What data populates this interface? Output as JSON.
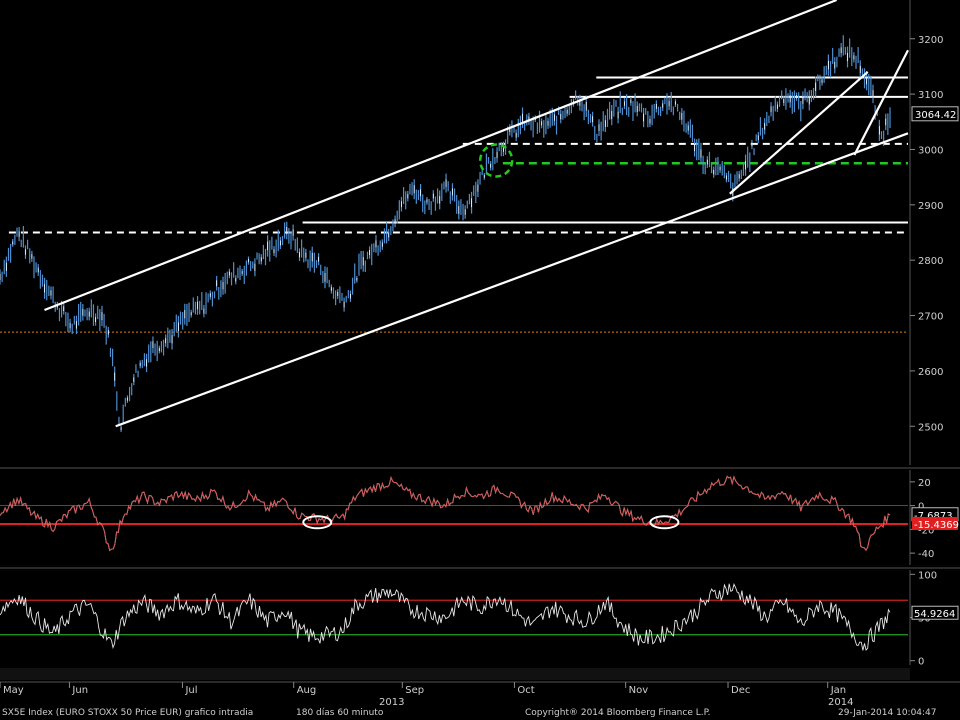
{
  "footer": {
    "security": "SX5E Index (EURO STOXX 50 Price EUR) grafico intradia",
    "range": "180 días 60 minuto",
    "copyright": "Copyright® 2014 Bloomberg Finance L.P.",
    "timestamp": "29-Jan-2014 10:04:47"
  },
  "colors": {
    "background": "#000000",
    "price": "#4f8fd0",
    "trendline": "#ffffff",
    "support_green": "#22c822",
    "indicator1": "#d23a3a",
    "indicator2": "#e6e6e6",
    "ref_orange": "#d9801e"
  },
  "chart_data": [
    {
      "type": "line",
      "panel": "price",
      "series": [
        {
          "name": "SX5E Index",
          "color": "#4f8fd0"
        }
      ],
      "x_months": [
        "May",
        "Jun",
        "Jul",
        "Aug",
        "Sep",
        "Oct",
        "Nov",
        "Dec",
        "Jan"
      ],
      "x_years": [
        "2013",
        "2014"
      ],
      "y_ticks": [
        2500,
        2600,
        2700,
        2800,
        2900,
        3000,
        3100,
        3200
      ],
      "ylim": [
        2430,
        3270
      ],
      "last_value_label": "3064.42",
      "price_path": [
        [
          0.0,
          2770
        ],
        [
          0.02,
          2850
        ],
        [
          0.04,
          2790
        ],
        [
          0.06,
          2730
        ],
        [
          0.08,
          2680
        ],
        [
          0.1,
          2710
        ],
        [
          0.115,
          2700
        ],
        [
          0.125,
          2640
        ],
        [
          0.135,
          2500
        ],
        [
          0.15,
          2590
        ],
        [
          0.17,
          2640
        ],
        [
          0.19,
          2660
        ],
        [
          0.21,
          2700
        ],
        [
          0.23,
          2720
        ],
        [
          0.25,
          2760
        ],
        [
          0.27,
          2780
        ],
        [
          0.29,
          2800
        ],
        [
          0.31,
          2830
        ],
        [
          0.325,
          2850
        ],
        [
          0.34,
          2810
        ],
        [
          0.36,
          2790
        ],
        [
          0.375,
          2740
        ],
        [
          0.39,
          2730
        ],
        [
          0.405,
          2790
        ],
        [
          0.42,
          2820
        ],
        [
          0.435,
          2850
        ],
        [
          0.45,
          2900
        ],
        [
          0.465,
          2930
        ],
        [
          0.48,
          2900
        ],
        [
          0.5,
          2930
        ],
        [
          0.52,
          2890
        ],
        [
          0.535,
          2930
        ],
        [
          0.55,
          2980
        ],
        [
          0.57,
          3020
        ],
        [
          0.59,
          3050
        ],
        [
          0.61,
          3040
        ],
        [
          0.63,
          3060
        ],
        [
          0.65,
          3100
        ],
        [
          0.67,
          3030
        ],
        [
          0.69,
          3070
        ],
        [
          0.71,
          3080
        ],
        [
          0.73,
          3060
        ],
        [
          0.75,
          3090
        ],
        [
          0.77,
          3050
        ],
        [
          0.79,
          2980
        ],
        [
          0.81,
          2960
        ],
        [
          0.825,
          2930
        ],
        [
          0.84,
          2980
        ],
        [
          0.86,
          3050
        ],
        [
          0.88,
          3100
        ],
        [
          0.9,
          3080
        ],
        [
          0.92,
          3120
        ],
        [
          0.935,
          3160
        ],
        [
          0.95,
          3180
        ],
        [
          0.965,
          3160
        ],
        [
          0.98,
          3100
        ],
        [
          0.99,
          3020
        ],
        [
          1.0,
          3064
        ]
      ],
      "trendlines": [
        {
          "kind": "channel-upper",
          "from": [
            0.05,
            2710
          ],
          "to": [
            0.94,
            3270
          ]
        },
        {
          "kind": "channel-lower",
          "from": [
            0.13,
            2500
          ],
          "to": [
            1.03,
            3035
          ]
        },
        {
          "kind": "inner-rising",
          "from": [
            0.82,
            2920
          ],
          "to": [
            0.975,
            3140
          ]
        },
        {
          "kind": "inner-steep",
          "from": [
            0.96,
            2990
          ],
          "to": [
            1.03,
            3210
          ]
        }
      ],
      "horizontal_levels": [
        {
          "value": 3130,
          "style": "solid",
          "from": 0.67,
          "to": 1.03
        },
        {
          "value": 3095,
          "style": "solid",
          "from": 0.64,
          "to": 1.03
        },
        {
          "value": 3010,
          "style": "dashed",
          "from": 0.52,
          "to": 1.03
        },
        {
          "value": 2975,
          "style": "dashed-green",
          "from": 0.565,
          "to": 1.03
        },
        {
          "value": 2868,
          "style": "solid",
          "from": 0.34,
          "to": 1.03
        },
        {
          "value": 2850,
          "style": "dashed",
          "from": 0.01,
          "to": 1.03
        },
        {
          "value": 2670,
          "style": "dotted-orange",
          "from": 0.0,
          "to": 1.03
        }
      ],
      "annotations": [
        {
          "kind": "green-circle",
          "at": [
            0.58,
            2980
          ]
        }
      ]
    },
    {
      "type": "line",
      "panel": "indicator-1",
      "series": [
        {
          "color": "#d23a3a"
        }
      ],
      "y_ticks": [
        20,
        0,
        -20,
        -40
      ],
      "ylim": [
        -50,
        30
      ],
      "reference_level": -15.4369,
      "last_value_labels": [
        "-7.6873",
        "-15.4369"
      ],
      "path": [
        [
          0.0,
          -5
        ],
        [
          0.02,
          5
        ],
        [
          0.04,
          -10
        ],
        [
          0.06,
          -18
        ],
        [
          0.08,
          -5
        ],
        [
          0.1,
          3
        ],
        [
          0.115,
          -20
        ],
        [
          0.125,
          -38
        ],
        [
          0.14,
          -5
        ],
        [
          0.16,
          8
        ],
        [
          0.18,
          2
        ],
        [
          0.2,
          10
        ],
        [
          0.22,
          5
        ],
        [
          0.24,
          12
        ],
        [
          0.26,
          -2
        ],
        [
          0.28,
          10
        ],
        [
          0.3,
          -3
        ],
        [
          0.32,
          5
        ],
        [
          0.335,
          -8
        ],
        [
          0.35,
          -10
        ],
        [
          0.37,
          -12
        ],
        [
          0.385,
          -10
        ],
        [
          0.4,
          8
        ],
        [
          0.42,
          15
        ],
        [
          0.44,
          20
        ],
        [
          0.46,
          10
        ],
        [
          0.48,
          5
        ],
        [
          0.5,
          0
        ],
        [
          0.52,
          12
        ],
        [
          0.54,
          8
        ],
        [
          0.56,
          15
        ],
        [
          0.58,
          5
        ],
        [
          0.6,
          -5
        ],
        [
          0.62,
          8
        ],
        [
          0.64,
          3
        ],
        [
          0.66,
          -2
        ],
        [
          0.68,
          10
        ],
        [
          0.7,
          -5
        ],
        [
          0.72,
          -12
        ],
        [
          0.74,
          -15
        ],
        [
          0.76,
          -8
        ],
        [
          0.78,
          5
        ],
        [
          0.8,
          18
        ],
        [
          0.82,
          22
        ],
        [
          0.84,
          15
        ],
        [
          0.86,
          5
        ],
        [
          0.88,
          12
        ],
        [
          0.9,
          -2
        ],
        [
          0.92,
          10
        ],
        [
          0.94,
          2
        ],
        [
          0.96,
          -15
        ],
        [
          0.97,
          -38
        ],
        [
          0.985,
          -20
        ],
        [
          1.0,
          -8
        ]
      ],
      "annotations": [
        {
          "kind": "white-ellipse",
          "at": [
            0.37,
            -14
          ]
        },
        {
          "kind": "white-ellipse",
          "at": [
            0.76,
            -14
          ]
        }
      ]
    },
    {
      "type": "line",
      "panel": "indicator-2",
      "series": [
        {
          "color": "#e6e6e6"
        }
      ],
      "y_ticks": [
        100,
        50,
        0
      ],
      "ylim": [
        -5,
        105
      ],
      "upper_level": 70,
      "lower_level": 30,
      "last_value_labels": [
        "54.9264"
      ],
      "path": [
        [
          0.0,
          60
        ],
        [
          0.02,
          75
        ],
        [
          0.04,
          50
        ],
        [
          0.06,
          30
        ],
        [
          0.08,
          55
        ],
        [
          0.1,
          65
        ],
        [
          0.115,
          35
        ],
        [
          0.125,
          18
        ],
        [
          0.14,
          50
        ],
        [
          0.16,
          68
        ],
        [
          0.18,
          55
        ],
        [
          0.2,
          70
        ],
        [
          0.22,
          55
        ],
        [
          0.24,
          72
        ],
        [
          0.26,
          45
        ],
        [
          0.28,
          70
        ],
        [
          0.3,
          45
        ],
        [
          0.32,
          60
        ],
        [
          0.335,
          35
        ],
        [
          0.35,
          28
        ],
        [
          0.37,
          30
        ],
        [
          0.385,
          35
        ],
        [
          0.4,
          65
        ],
        [
          0.42,
          75
        ],
        [
          0.44,
          80
        ],
        [
          0.46,
          60
        ],
        [
          0.48,
          55
        ],
        [
          0.5,
          50
        ],
        [
          0.52,
          70
        ],
        [
          0.54,
          62
        ],
        [
          0.56,
          75
        ],
        [
          0.58,
          55
        ],
        [
          0.6,
          40
        ],
        [
          0.62,
          62
        ],
        [
          0.64,
          52
        ],
        [
          0.66,
          45
        ],
        [
          0.68,
          68
        ],
        [
          0.7,
          40
        ],
        [
          0.72,
          25
        ],
        [
          0.74,
          28
        ],
        [
          0.76,
          40
        ],
        [
          0.78,
          55
        ],
        [
          0.8,
          75
        ],
        [
          0.82,
          85
        ],
        [
          0.84,
          72
        ],
        [
          0.86,
          50
        ],
        [
          0.88,
          68
        ],
        [
          0.9,
          42
        ],
        [
          0.92,
          65
        ],
        [
          0.94,
          55
        ],
        [
          0.96,
          30
        ],
        [
          0.97,
          18
        ],
        [
          0.985,
          35
        ],
        [
          1.0,
          55
        ]
      ]
    }
  ]
}
